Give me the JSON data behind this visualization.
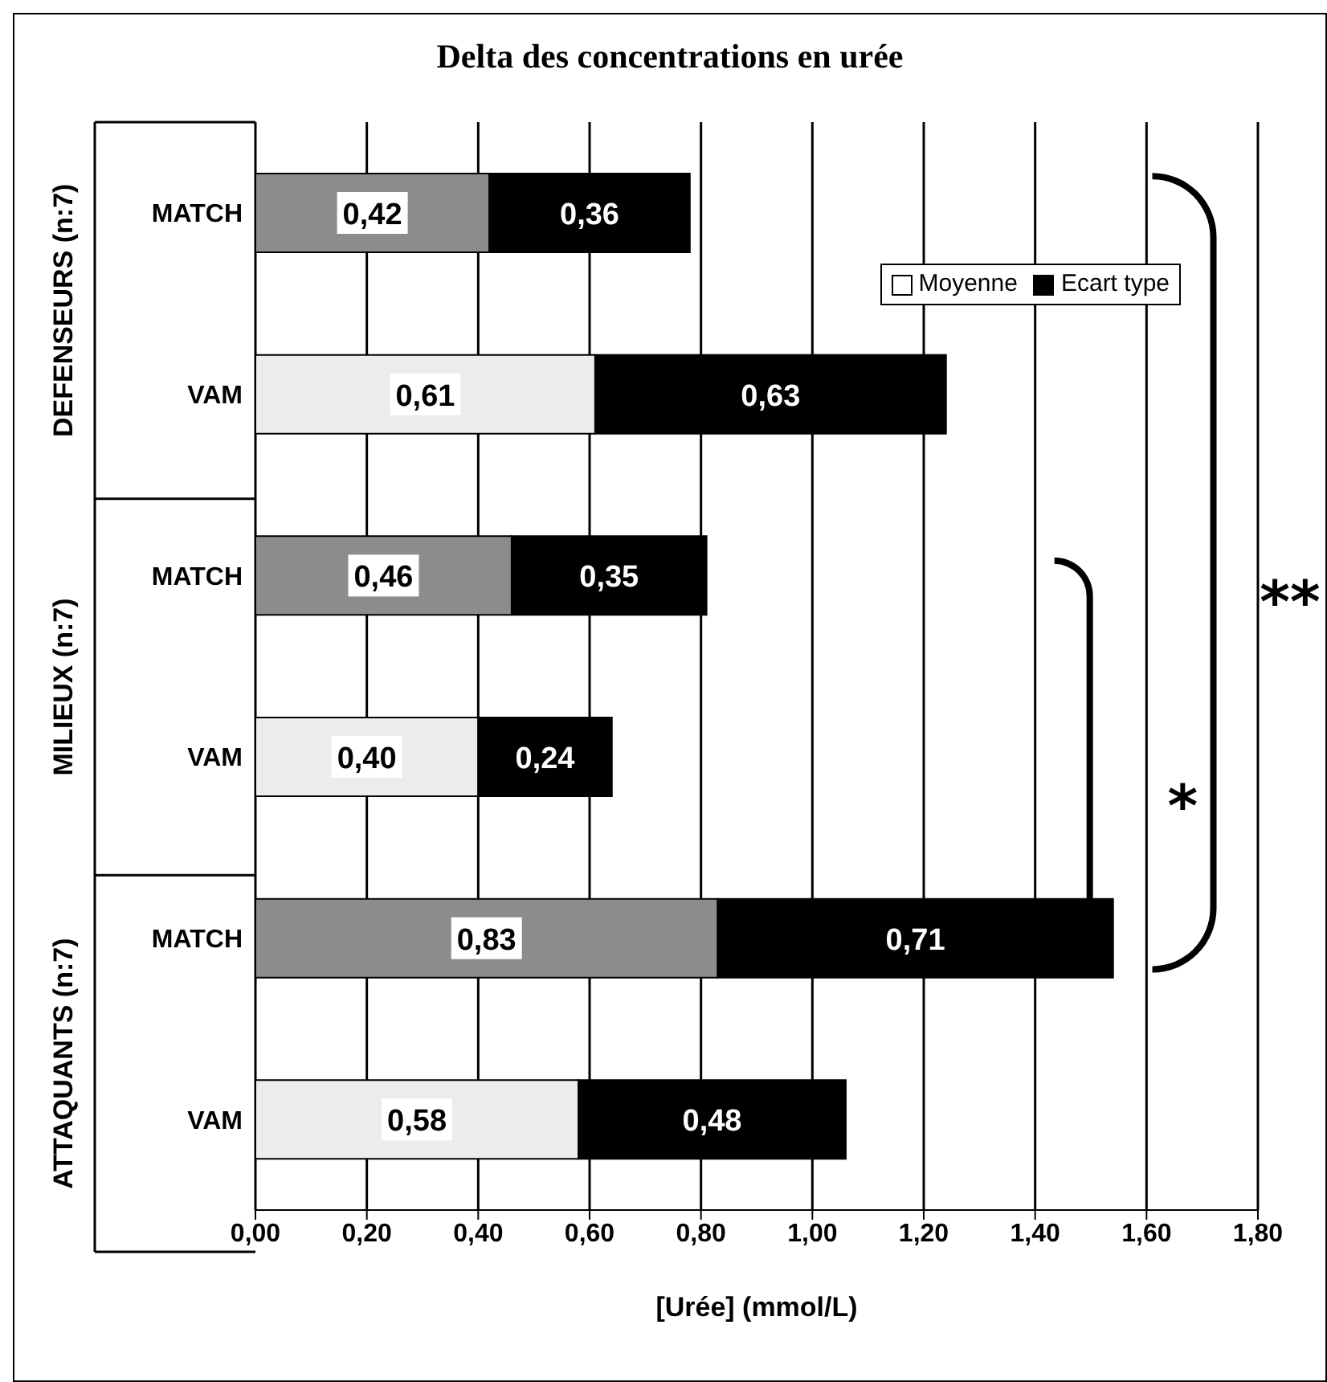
{
  "chart_data": {
    "type": "bar",
    "orientation": "horizontal",
    "stacked": true,
    "title": "Delta des concentrations en urée",
    "xlabel": "[Urée] (mmol/L)",
    "categories": [
      "MATCH",
      "VAM",
      "MATCH",
      "VAM",
      "MATCH",
      "VAM"
    ],
    "series": [
      {
        "name": "Moyenne",
        "color": "#ffffff",
        "colors": [
          "#8c8c8c",
          "#ececec",
          "#8c8c8c",
          "#ececec",
          "#8c8c8c",
          "#ececec"
        ],
        "values": [
          0.42,
          0.61,
          0.46,
          0.4,
          0.83,
          0.58
        ],
        "value_labels": [
          "0,42",
          "0,61",
          "0,46",
          "0,40",
          "0,83",
          "0,58"
        ]
      },
      {
        "name": "Ecart type",
        "color": "#000000",
        "values": [
          0.36,
          0.63,
          0.35,
          0.24,
          0.71,
          0.48
        ],
        "value_labels": [
          "0,36",
          "0,63",
          "0,35",
          "0,24",
          "0,71",
          "0,48"
        ]
      }
    ],
    "xlim": [
      0,
      1.8
    ],
    "xticks": [
      {
        "value": 0,
        "label": "0,00"
      },
      {
        "value": 0.2,
        "label": "0,20"
      },
      {
        "value": 0.4,
        "label": "0,40"
      },
      {
        "value": 0.6,
        "label": "0,60"
      },
      {
        "value": 0.8,
        "label": "0,80"
      },
      {
        "value": 1.0,
        "label": "1,00"
      },
      {
        "value": 1.2,
        "label": "1,20"
      },
      {
        "value": 1.4,
        "label": "1,40"
      },
      {
        "value": 1.6,
        "label": "1,60"
      },
      {
        "value": 1.8,
        "label": "1,80"
      }
    ],
    "grid": "x",
    "legend": "top right",
    "annotations": [
      "DEFENSEURS (n:7)",
      "MILIEUX (n:7)",
      "ATTAQUANTS (n:7)",
      "*",
      "**"
    ]
  }
}
